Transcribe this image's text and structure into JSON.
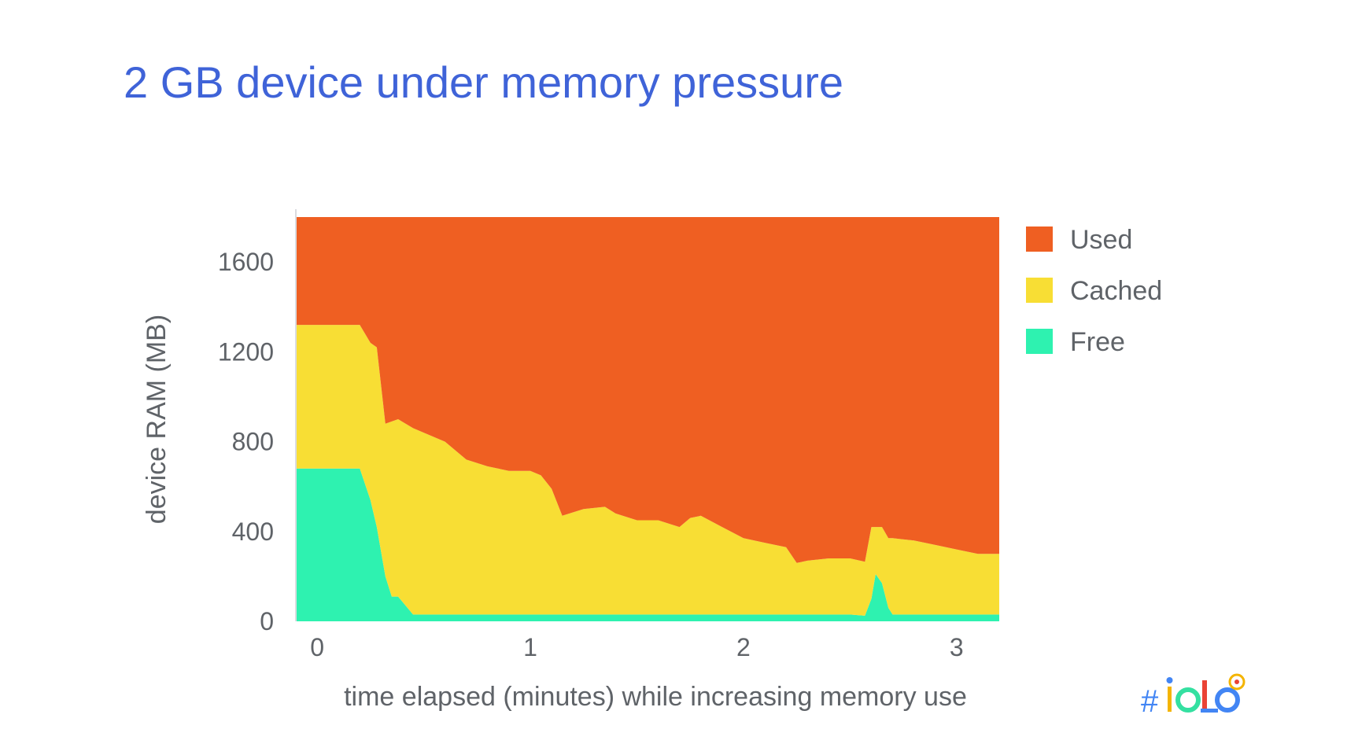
{
  "slide": {
    "title": "2 GB device under memory pressure",
    "logo_text": "#io18"
  },
  "chart_data": {
    "type": "area",
    "stacked": true,
    "title": "2 GB device under memory pressure",
    "xlabel": "time elapsed (minutes) while increasing memory use",
    "ylabel": "device RAM (MB)",
    "xlim": [
      -0.1,
      3.2
    ],
    "ylim": [
      0,
      1800
    ],
    "xticks": [
      0,
      1,
      2,
      3
    ],
    "yticks": [
      0,
      400,
      800,
      1200,
      1600
    ],
    "legend": "right",
    "grid": false,
    "x": [
      -0.1,
      0.2,
      0.25,
      0.28,
      0.32,
      0.35,
      0.38,
      0.45,
      0.5,
      0.6,
      0.7,
      0.8,
      0.9,
      1.0,
      1.05,
      1.1,
      1.15,
      1.25,
      1.35,
      1.4,
      1.5,
      1.6,
      1.7,
      1.75,
      1.8,
      1.9,
      2.0,
      2.1,
      2.2,
      2.25,
      2.3,
      2.4,
      2.5,
      2.57,
      2.6,
      2.62,
      2.65,
      2.68,
      2.7,
      2.8,
      2.9,
      3.0,
      3.1,
      3.2
    ],
    "series": [
      {
        "name": "Free",
        "color": "#2ef2b0",
        "values": [
          680,
          680,
          540,
          420,
          200,
          110,
          110,
          30,
          30,
          30,
          30,
          30,
          30,
          30,
          30,
          30,
          30,
          30,
          30,
          30,
          30,
          30,
          30,
          30,
          30,
          30,
          30,
          30,
          30,
          30,
          30,
          30,
          30,
          25,
          100,
          210,
          170,
          60,
          30,
          30,
          30,
          30,
          30,
          30
        ]
      },
      {
        "name": "Cached",
        "color": "#f8de34",
        "values": [
          640,
          640,
          700,
          800,
          680,
          780,
          790,
          830,
          810,
          770,
          690,
          660,
          640,
          640,
          620,
          560,
          440,
          470,
          480,
          450,
          420,
          420,
          390,
          430,
          440,
          390,
          340,
          320,
          300,
          230,
          240,
          250,
          250,
          240,
          320,
          210,
          250,
          310,
          340,
          330,
          310,
          290,
          270,
          270
        ]
      },
      {
        "name": "Used",
        "color": "#ef5f22",
        "values": [
          480,
          480,
          560,
          580,
          920,
          910,
          900,
          940,
          960,
          1000,
          1080,
          1110,
          1130,
          1130,
          1150,
          1210,
          1330,
          1300,
          1290,
          1320,
          1350,
          1350,
          1380,
          1340,
          1330,
          1380,
          1430,
          1450,
          1470,
          1540,
          1530,
          1520,
          1520,
          1535,
          1380,
          1380,
          1380,
          1430,
          1430,
          1440,
          1460,
          1480,
          1500,
          1500
        ]
      }
    ]
  }
}
